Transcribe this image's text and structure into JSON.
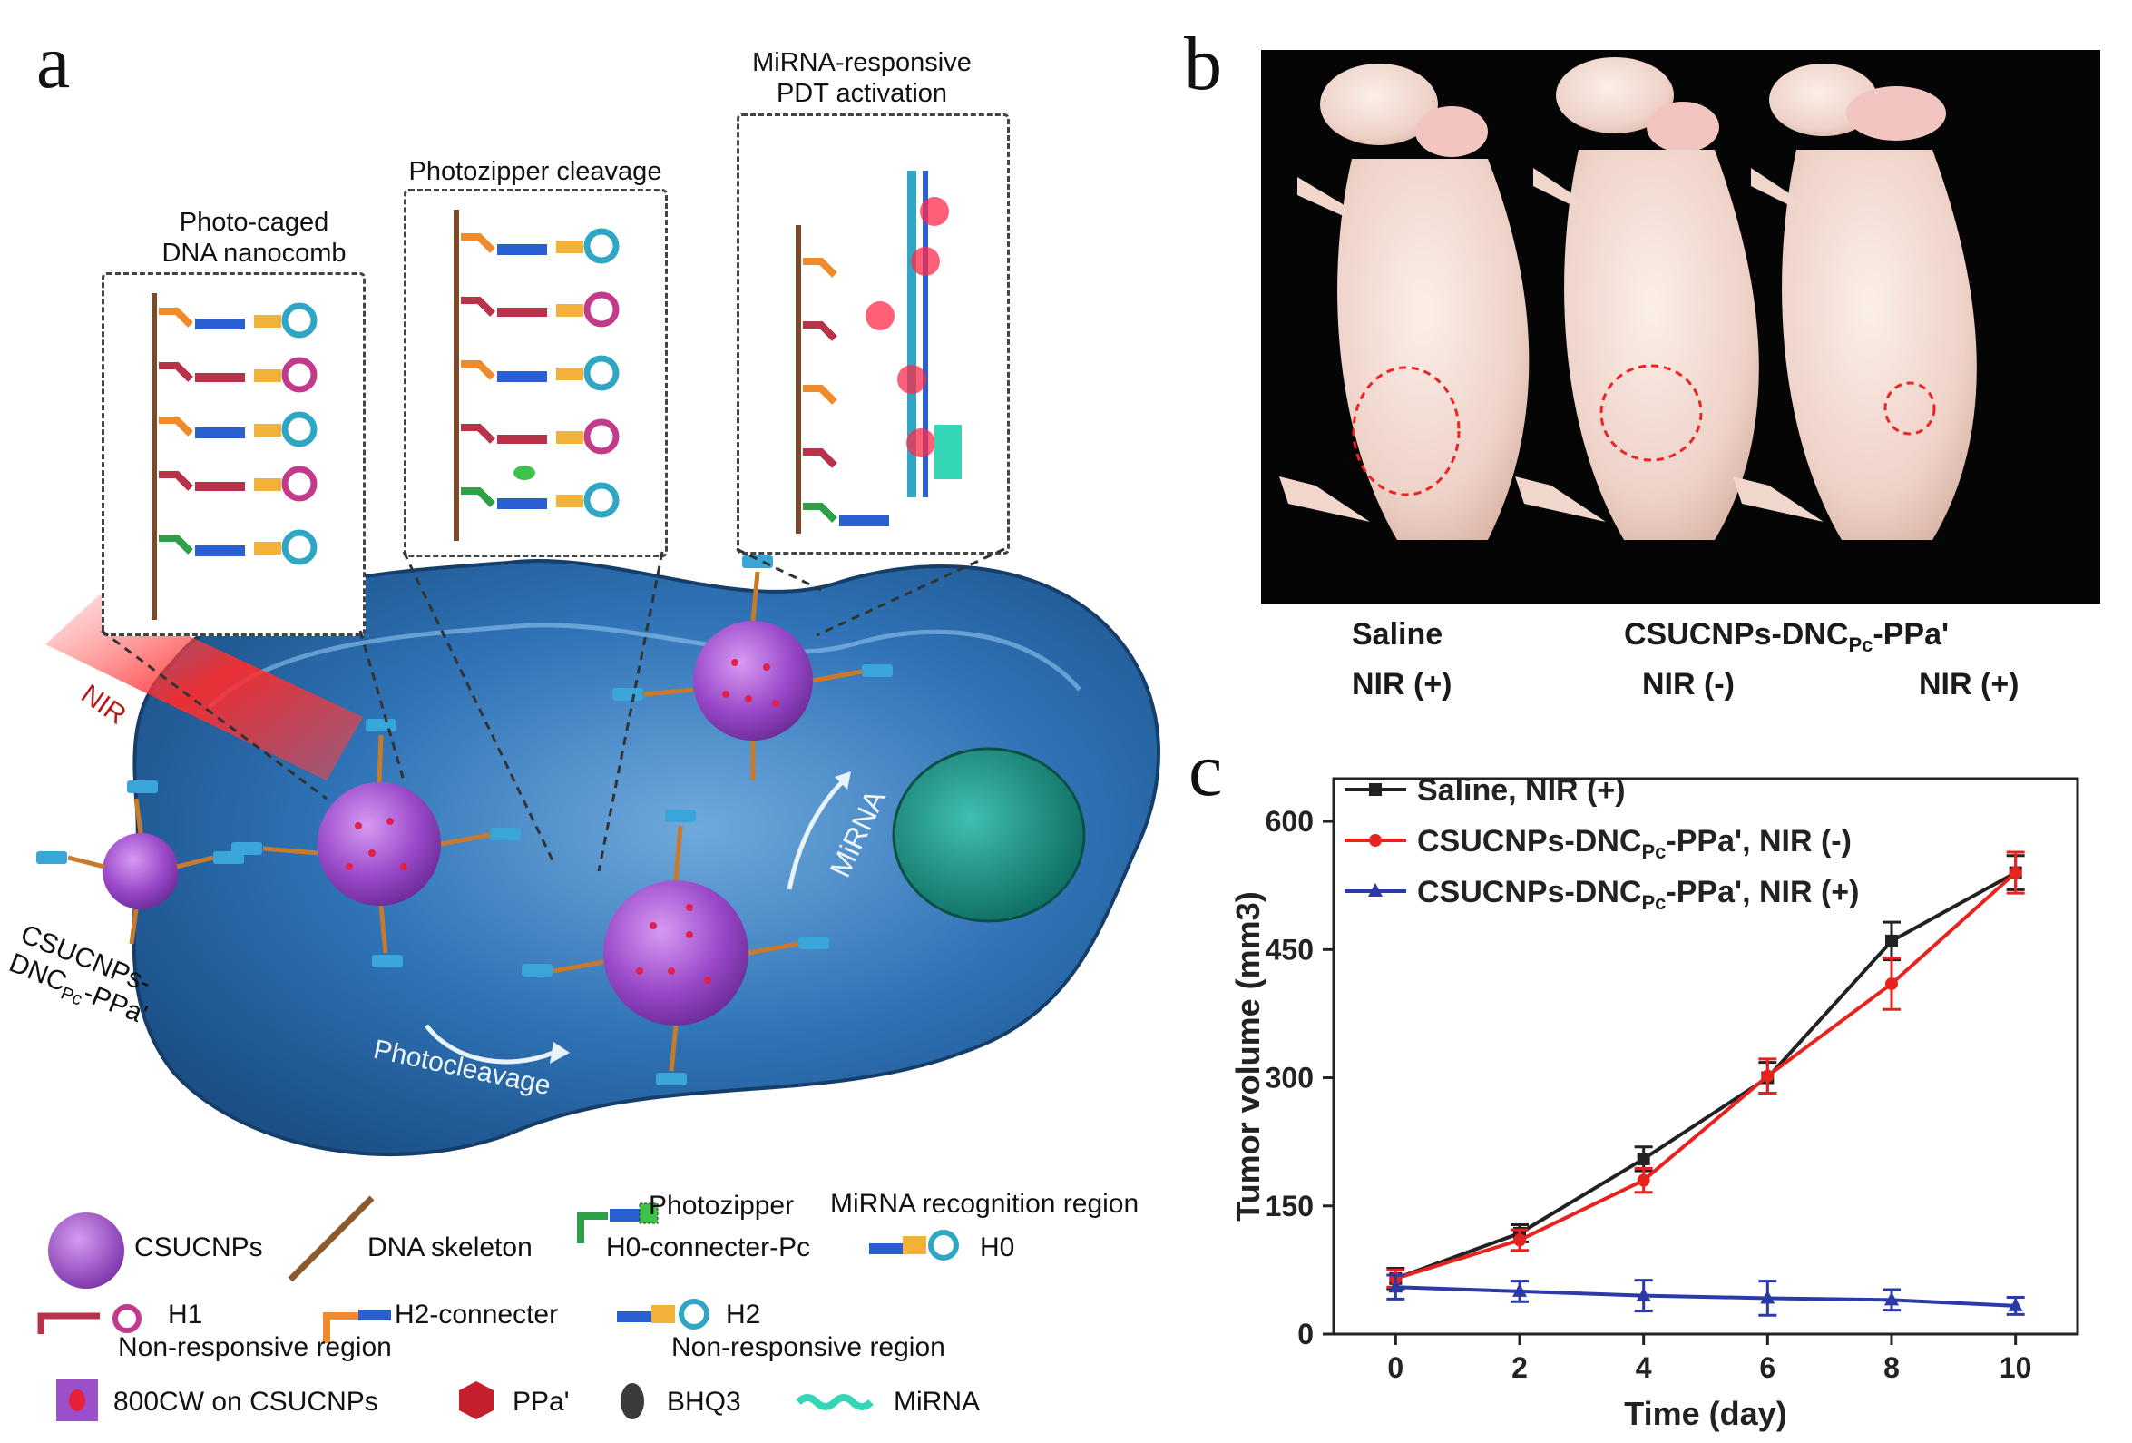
{
  "panels": {
    "a": "a",
    "b": "b",
    "c": "c"
  },
  "panel_a": {
    "box1_title": [
      "Photo-caged",
      "DNA nanocomb"
    ],
    "box2_title": [
      "Photozipper cleavage"
    ],
    "box3_title": [
      "MiRNA-responsive",
      "PDT activation"
    ],
    "nir_label": "NIR",
    "particle_label_1": "CSUCNPs-",
    "particle_label_2": "DNC",
    "particle_label_sub": "Pc",
    "particle_label_3": "-PPa'",
    "mirna_arrow_label": "MiRNA",
    "photocleavage_label": "Photocleavage",
    "legend": {
      "csucnps": "CSUCNPs",
      "dna_skeleton": "DNA skeleton",
      "photozipper": "Photozipper",
      "h0_connecter": "H0-connecter-Pc",
      "mirna_recognition": "MiRNA recognition region",
      "h0": "H0",
      "h1": "H1",
      "non_responsive_1": "Non-responsive region",
      "h2_connecter": "H2-connecter",
      "h2": "H2",
      "non_responsive_2": "Non-responsive region",
      "cw800": "800CW on CSUCNPs",
      "ppa": "PPa'",
      "bhq3": "BHQ3",
      "mirna": "MiRNA"
    },
    "colors": {
      "cell": "#2a6fae",
      "nucleus": "#1e8f84",
      "particle": "#9b4fc9",
      "nir": "#e8302a"
    }
  },
  "panel_b": {
    "label_saline": "Saline",
    "label_nir_plus_1": "NIR (+)",
    "label_csucnps": "CSUCNPs-DNC",
    "label_csucnps_sub": "Pc",
    "label_csucnps_tail": "-PPa'",
    "label_nir_minus": "NIR (-)",
    "label_nir_plus_2": "NIR (+)"
  },
  "chart_data": {
    "type": "line",
    "xlabel": "Time (day)",
    "ylabel": "Tumor volume (mm3)",
    "x": [
      0,
      2,
      4,
      6,
      8,
      10
    ],
    "xlim": [
      -1,
      11
    ],
    "ylim": [
      0,
      650
    ],
    "xticks": [
      "0",
      "2",
      "4",
      "6",
      "8",
      "10"
    ],
    "yticks": [
      "0",
      "150",
      "300",
      "450",
      "600"
    ],
    "ytick_values": [
      0,
      150,
      300,
      450,
      600
    ],
    "legend_position": "top-left",
    "series": [
      {
        "name": "Saline, NIR (+)",
        "color": "#222222",
        "marker": "square",
        "values": [
          65,
          118,
          205,
          300,
          460,
          540
        ],
        "errors": [
          12,
          10,
          14,
          18,
          22,
          20
        ]
      },
      {
        "name": "CSUCNPs-DNC_Pc-PPa', NIR (-)",
        "color": "#e8231f",
        "marker": "circle",
        "values": [
          65,
          110,
          180,
          302,
          410,
          540
        ],
        "errors": [
          10,
          12,
          14,
          20,
          30,
          24
        ]
      },
      {
        "name": "CSUCNPs-DNC_Pc-PPa', NIR (+)",
        "color": "#2b3aa8",
        "marker": "triangle",
        "values": [
          55,
          50,
          45,
          42,
          40,
          33
        ],
        "errors": [
          14,
          12,
          18,
          20,
          12,
          10
        ]
      }
    ],
    "legend_display": [
      {
        "main": "Saline, NIR (+)"
      },
      {
        "main": "CSUCNPs-DNC",
        "sub": "Pc",
        "tail": "-PPa', NIR (-)"
      },
      {
        "main": "CSUCNPs-DNC",
        "sub": "Pc",
        "tail": "-PPa', NIR (+)"
      }
    ]
  }
}
